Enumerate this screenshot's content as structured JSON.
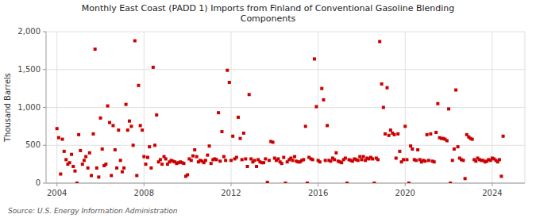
{
  "chart_data": {
    "type": "scatter",
    "title": "Monthly East Coast (PADD 1) Imports from Finland of Conventional Gasoline Blending\nComponents",
    "ylabel": "Thousand Barrels",
    "source": "Source: U.S. Energy Information Administration",
    "color": "#cc0000",
    "marker": "square",
    "grid": true,
    "xlim": [
      2003.5,
      2025.5
    ],
    "ylim": [
      0,
      2000
    ],
    "xticks": [
      2004,
      2008,
      2012,
      2016,
      2020,
      2024
    ],
    "yticks": [
      0,
      500,
      {
        "value": 1000,
        "label": "1,000"
      },
      {
        "value": 1500,
        "label": "1,500"
      },
      {
        "value": 2000,
        "label": "2,000"
      }
    ],
    "x": [
      2004.0,
      2004.08,
      2004.17,
      2004.25,
      2004.33,
      2004.42,
      2004.5,
      2004.58,
      2004.67,
      2004.75,
      2004.83,
      2004.92,
      2005.0,
      2005.08,
      2005.17,
      2005.25,
      2005.33,
      2005.42,
      2005.5,
      2005.58,
      2005.67,
      2005.75,
      2005.83,
      2005.92,
      2006.0,
      2006.08,
      2006.17,
      2006.25,
      2006.33,
      2006.42,
      2006.5,
      2006.58,
      2006.67,
      2006.75,
      2006.83,
      2006.92,
      2007.0,
      2007.08,
      2007.17,
      2007.25,
      2007.33,
      2007.42,
      2007.5,
      2007.58,
      2007.67,
      2007.75,
      2007.83,
      2007.92,
      2008.0,
      2008.08,
      2008.17,
      2008.25,
      2008.33,
      2008.42,
      2008.5,
      2008.58,
      2008.67,
      2008.75,
      2008.83,
      2008.92,
      2009.0,
      2009.08,
      2009.17,
      2009.25,
      2009.33,
      2009.42,
      2009.5,
      2009.58,
      2009.67,
      2009.75,
      2009.83,
      2009.92,
      2010.0,
      2010.08,
      2010.17,
      2010.25,
      2010.33,
      2010.42,
      2010.5,
      2010.58,
      2010.67,
      2010.75,
      2010.83,
      2010.92,
      2011.0,
      2011.08,
      2011.17,
      2011.25,
      2011.33,
      2011.42,
      2011.5,
      2011.58,
      2011.67,
      2011.75,
      2011.83,
      2011.92,
      2012.0,
      2012.08,
      2012.17,
      2012.25,
      2012.33,
      2012.42,
      2012.5,
      2012.58,
      2012.67,
      2012.75,
      2012.83,
      2012.92,
      2013.0,
      2013.08,
      2013.17,
      2013.25,
      2013.33,
      2013.42,
      2013.5,
      2013.58,
      2013.67,
      2013.75,
      2013.83,
      2013.92,
      2014.0,
      2014.08,
      2014.17,
      2014.25,
      2014.33,
      2014.42,
      2014.5,
      2014.58,
      2014.67,
      2014.75,
      2014.83,
      2014.92,
      2015.0,
      2015.08,
      2015.17,
      2015.25,
      2015.33,
      2015.42,
      2015.5,
      2015.58,
      2015.67,
      2015.75,
      2015.83,
      2015.92,
      2016.0,
      2016.08,
      2016.17,
      2016.25,
      2016.33,
      2016.42,
      2016.5,
      2016.58,
      2016.67,
      2016.75,
      2016.83,
      2016.92,
      2017.0,
      2017.08,
      2017.17,
      2017.25,
      2017.33,
      2017.42,
      2017.5,
      2017.58,
      2017.67,
      2017.75,
      2017.83,
      2017.92,
      2018.0,
      2018.08,
      2018.17,
      2018.25,
      2018.33,
      2018.42,
      2018.5,
      2018.58,
      2018.67,
      2018.75,
      2018.83,
      2018.92,
      2019.0,
      2019.08,
      2019.17,
      2019.25,
      2019.33,
      2019.42,
      2019.5,
      2019.58,
      2019.67,
      2019.75,
      2019.83,
      2019.92,
      2020.0,
      2020.08,
      2020.17,
      2020.25,
      2020.33,
      2020.42,
      2020.5,
      2020.58,
      2020.67,
      2020.75,
      2020.83,
      2020.92,
      2021.0,
      2021.08,
      2021.17,
      2021.25,
      2021.33,
      2021.42,
      2021.5,
      2021.58,
      2021.67,
      2021.75,
      2021.83,
      2021.92,
      2022.0,
      2022.08,
      2022.17,
      2022.25,
      2022.33,
      2022.42,
      2022.5,
      2022.58,
      2022.67,
      2022.75,
      2022.83,
      2022.92,
      2023.0,
      2023.08,
      2023.17,
      2023.25,
      2023.33,
      2023.42,
      2023.5,
      2023.58,
      2023.67,
      2023.75,
      2023.83,
      2023.92,
      2024.0,
      2024.08,
      2024.17,
      2024.25,
      2024.33,
      2024.42,
      2024.5
    ],
    "values": [
      720,
      600,
      120,
      580,
      420,
      310,
      250,
      270,
      380,
      220,
      160,
      0,
      640,
      430,
      250,
      300,
      350,
      200,
      400,
      100,
      650,
      1770,
      200,
      80,
      860,
      450,
      230,
      250,
      1020,
      800,
      100,
      760,
      440,
      200,
      700,
      300,
      150,
      200,
      1040,
      700,
      820,
      750,
      500,
      1880,
      100,
      1290,
      760,
      700,
      350,
      250,
      340,
      480,
      200,
      1530,
      500,
      900,
      280,
      310,
      250,
      350,
      320,
      250,
      280,
      300,
      290,
      280,
      260,
      270,
      280,
      270,
      260,
      90,
      110,
      320,
      300,
      360,
      440,
      350,
      280,
      300,
      290,
      270,
      300,
      370,
      490,
      260,
      310,
      320,
      310,
      930,
      290,
      680,
      350,
      300,
      1490,
      1330,
      300,
      620,
      320,
      340,
      870,
      590,
      310,
      660,
      320,
      220,
      1170,
      320,
      280,
      300,
      220,
      310,
      280,
      270,
      270,
      320,
      10,
      300,
      550,
      540,
      330,
      300,
      320,
      280,
      260,
      340,
      0,
      280,
      310,
      330,
      300,
      350,
      290,
      280,
      280,
      300,
      310,
      750,
      0,
      340,
      320,
      310,
      1640,
      1010,
      300,
      280,
      1250,
      1100,
      300,
      760,
      300,
      290,
      330,
      310,
      400,
      290,
      280,
      270,
      310,
      330,
      0,
      310,
      300,
      290,
      320,
      310,
      300,
      350,
      310,
      350,
      300,
      330,
      320,
      340,
      320,
      0,
      330,
      310,
      1870,
      1310,
      1000,
      650,
      1260,
      630,
      700,
      660,
      640,
      330,
      650,
      420,
      280,
      310,
      750,
      310,
      0,
      490,
      450,
      310,
      300,
      440,
      310,
      280,
      300,
      290,
      640,
      300,
      650,
      290,
      280,
      670,
      1050,
      600,
      590,
      590,
      580,
      560,
      980,
      0,
      300,
      450,
      1230,
      480,
      330,
      310,
      300,
      60,
      640,
      610,
      590,
      580,
      310,
      290,
      330,
      310,
      300,
      300,
      280,
      290,
      310,
      300,
      330,
      320,
      300,
      280,
      310,
      90,
      620
    ]
  }
}
